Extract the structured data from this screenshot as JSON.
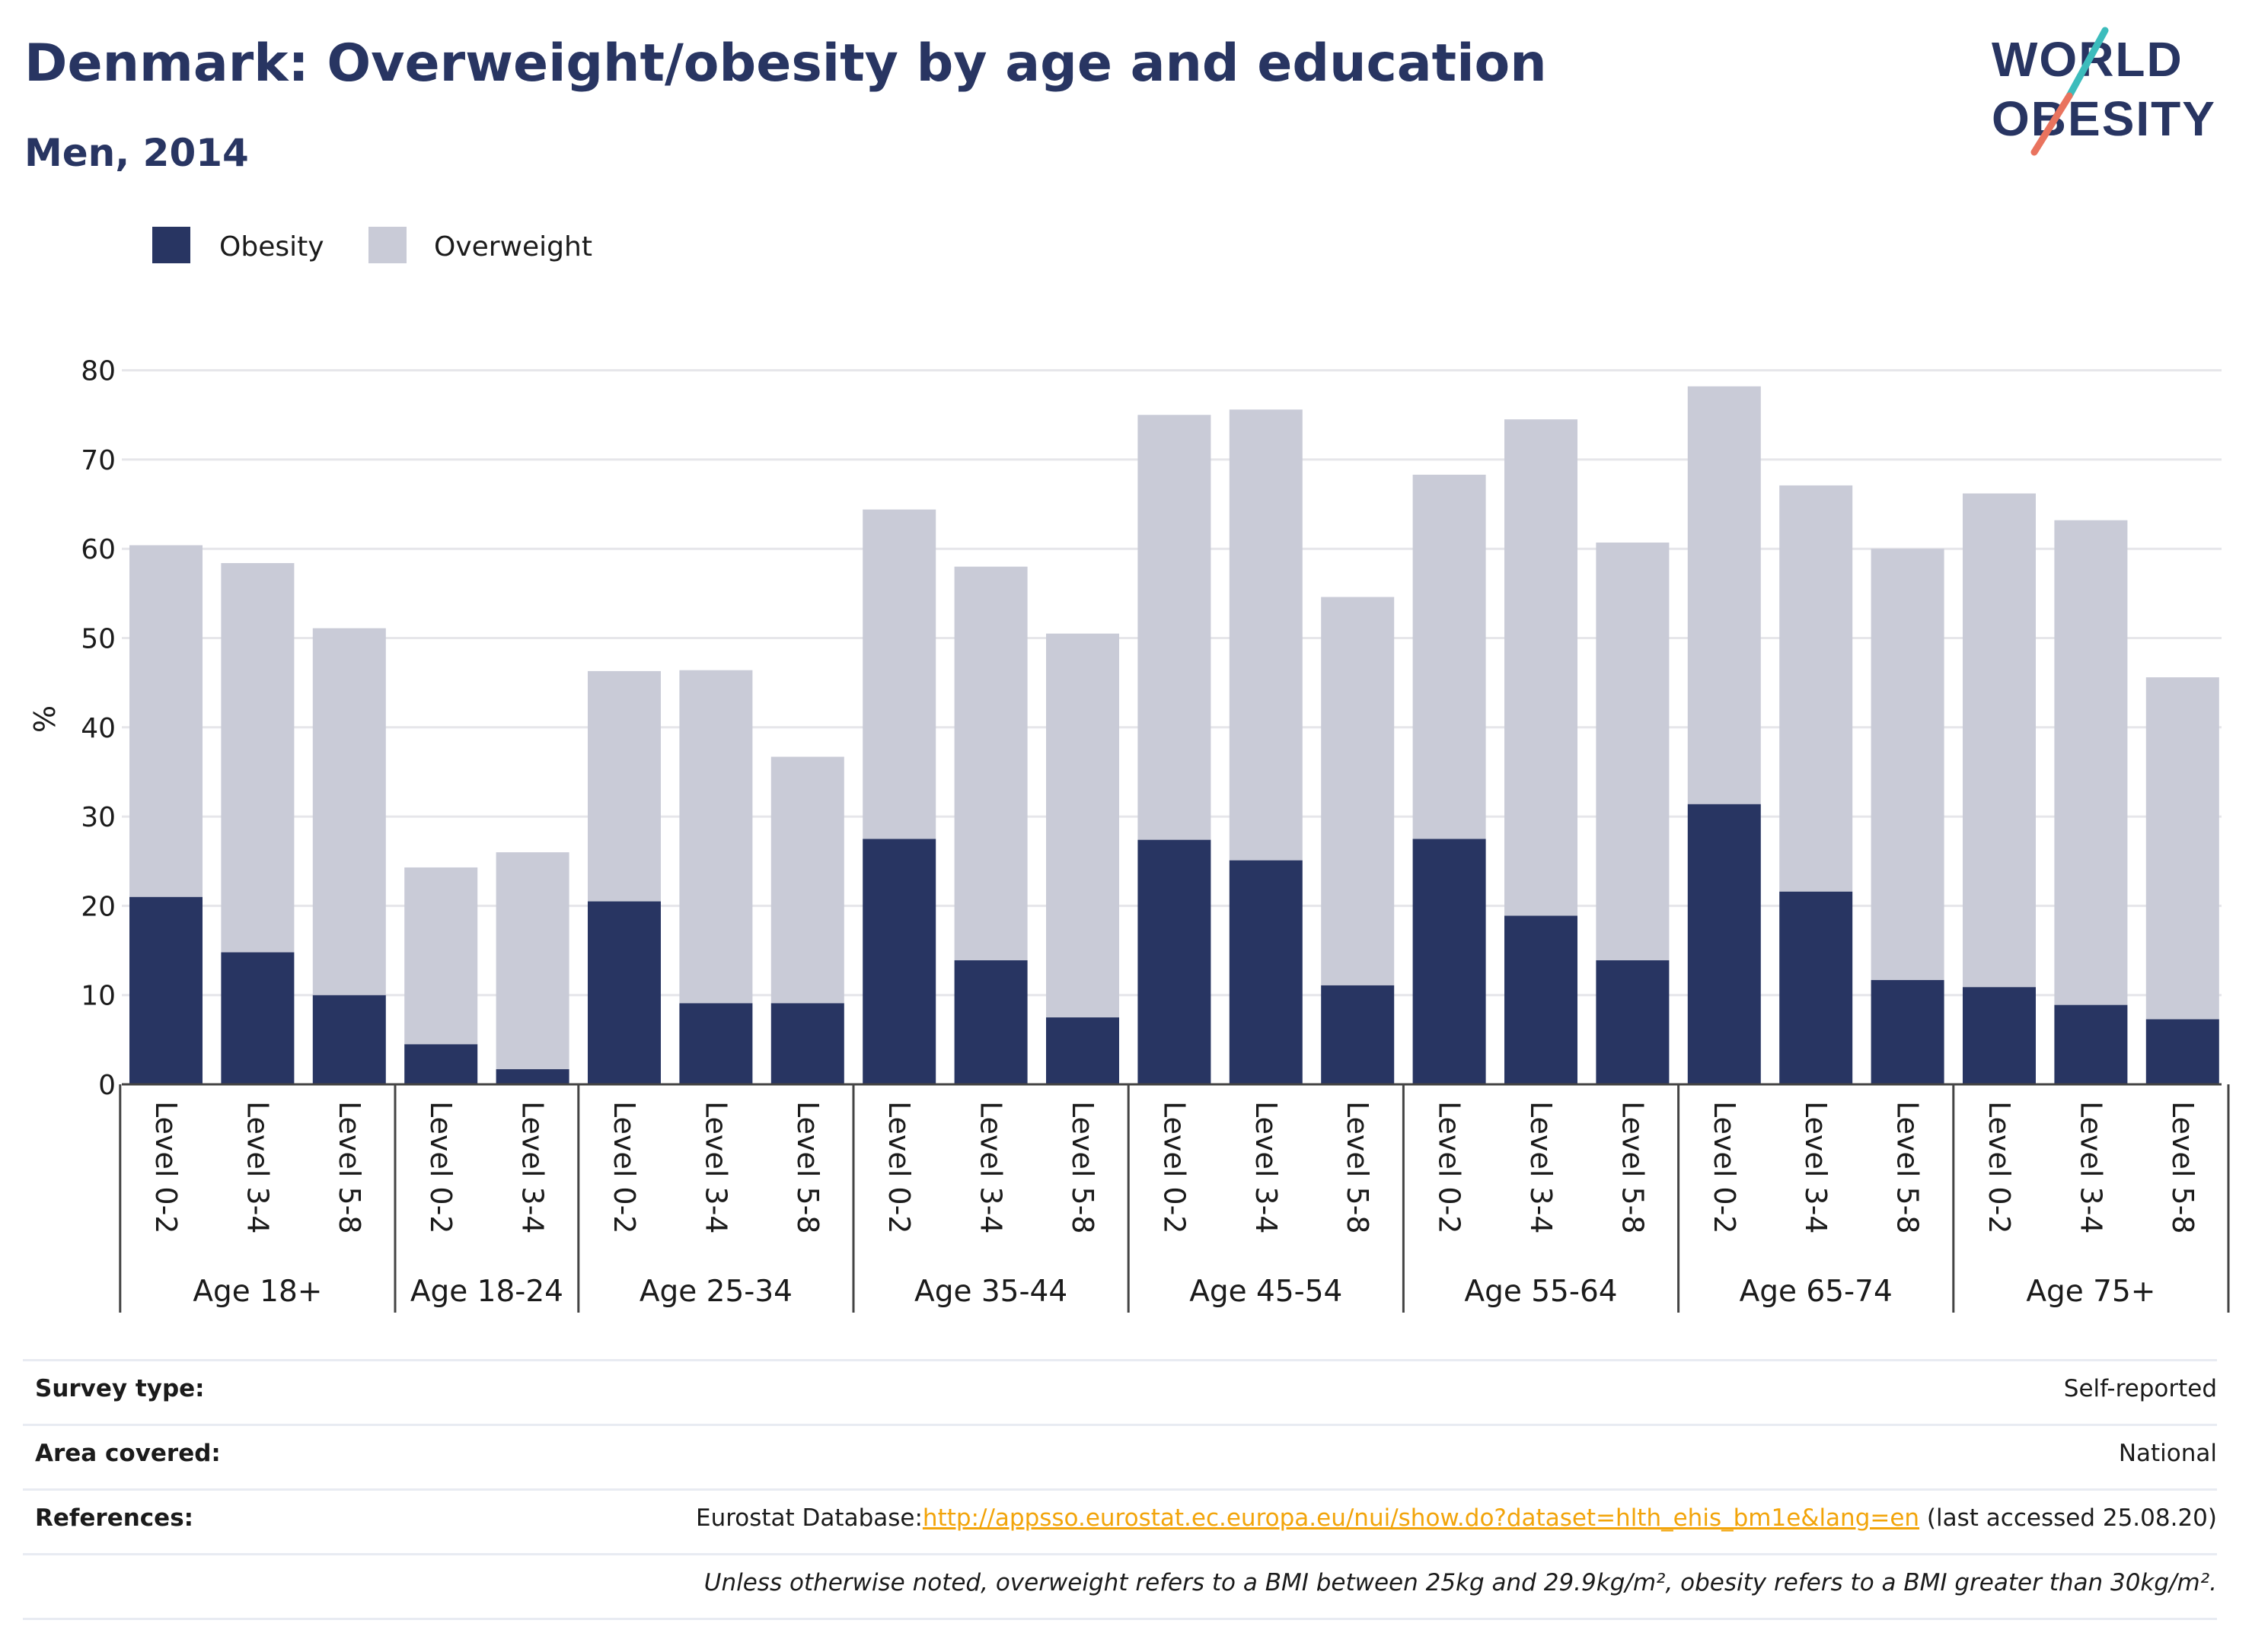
{
  "title": "Denmark: Overweight/obesity by age and education",
  "subtitle": "Men, 2014",
  "logo": {
    "line1": "WORLD",
    "line2": "OBESITY"
  },
  "colors": {
    "obesity": "#283562",
    "overweight": "#c9cbd7",
    "title": "#283562",
    "link": "#f2a40a"
  },
  "chart_data": {
    "type": "bar",
    "stacked": true,
    "ylabel": "%",
    "ylim": [
      0,
      80
    ],
    "yticks": [
      0,
      10,
      20,
      30,
      40,
      50,
      60,
      70,
      80
    ],
    "grid": true,
    "legend_position": "top-left",
    "groups": [
      {
        "label": "Age 18+",
        "categories": [
          "Level 0-2",
          "Level 3-4",
          "Level 5-8"
        ]
      },
      {
        "label": "Age 18-24",
        "categories": [
          "Level 0-2",
          "Level 3-4"
        ]
      },
      {
        "label": "Age 25-34",
        "categories": [
          "Level 0-2",
          "Level 3-4",
          "Level 5-8"
        ]
      },
      {
        "label": "Age 35-44",
        "categories": [
          "Level 0-2",
          "Level 3-4",
          "Level 5-8"
        ]
      },
      {
        "label": "Age 45-54",
        "categories": [
          "Level 0-2",
          "Level 3-4",
          "Level 5-8"
        ]
      },
      {
        "label": "Age 55-64",
        "categories": [
          "Level 0-2",
          "Level 3-4",
          "Level 5-8"
        ]
      },
      {
        "label": "Age 65-74",
        "categories": [
          "Level 0-2",
          "Level 3-4",
          "Level 5-8"
        ]
      },
      {
        "label": "Age 75+",
        "categories": [
          "Level 0-2",
          "Level 3-4",
          "Level 5-8"
        ]
      }
    ],
    "series": [
      {
        "name": "Obesity",
        "values": [
          21.0,
          14.8,
          10.0,
          4.5,
          1.7,
          20.5,
          9.1,
          9.1,
          27.5,
          13.9,
          7.5,
          27.4,
          25.1,
          11.1,
          27.5,
          18.9,
          13.9,
          31.4,
          21.6,
          11.7,
          10.9,
          8.9,
          7.3
        ]
      },
      {
        "name": "Overweight",
        "values": [
          39.4,
          43.6,
          41.1,
          19.8,
          24.3,
          25.8,
          37.3,
          27.6,
          36.9,
          44.1,
          43.0,
          47.6,
          50.5,
          43.5,
          40.8,
          55.6,
          46.8,
          46.8,
          45.5,
          48.3,
          55.3,
          54.3,
          38.3
        ]
      }
    ]
  },
  "info": [
    {
      "label": "Survey type:",
      "value": "Self-reported"
    },
    {
      "label": "Area covered:",
      "value": "National"
    },
    {
      "label": "References:",
      "prefix": "Eurostat Database:",
      "link": "http://appsso.eurostat.ec.europa.eu/nui/show.do?dataset=hlth_ehis_bm1e&lang=en",
      "suffix": " (last accessed 25.08.20)"
    },
    {
      "label": "",
      "value": "Unless otherwise noted, overweight refers to a BMI between 25kg and 29.9kg/m², obesity refers to a BMI greater than 30kg/m²."
    }
  ]
}
